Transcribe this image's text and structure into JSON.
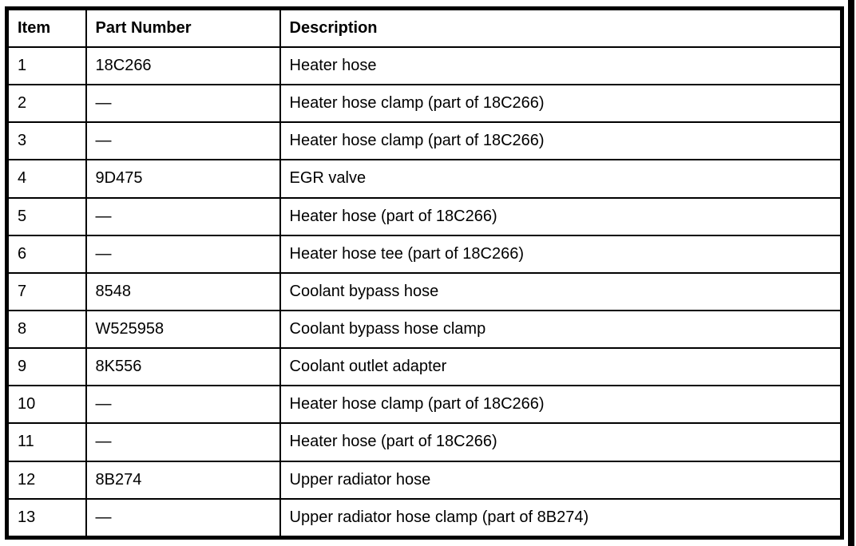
{
  "table": {
    "columns": [
      "Item",
      "Part Number",
      "Description"
    ],
    "rows": [
      {
        "item": "1",
        "part": "18C266",
        "desc": "Heater hose"
      },
      {
        "item": "2",
        "part": "—",
        "desc": "Heater hose clamp (part of 18C266)"
      },
      {
        "item": "3",
        "part": "—",
        "desc": "Heater hose clamp (part of 18C266)"
      },
      {
        "item": "4",
        "part": "9D475",
        "desc": "EGR valve"
      },
      {
        "item": "5",
        "part": "—",
        "desc": "Heater hose (part of 18C266)"
      },
      {
        "item": "6",
        "part": "—",
        "desc": "Heater hose tee (part of 18C266)"
      },
      {
        "item": "7",
        "part": "8548",
        "desc": "Coolant bypass hose"
      },
      {
        "item": "8",
        "part": "W525958",
        "desc": "Coolant bypass hose clamp"
      },
      {
        "item": "9",
        "part": "8K556",
        "desc": "Coolant outlet adapter"
      },
      {
        "item": "10",
        "part": "—",
        "desc": "Heater hose clamp (part of 18C266)"
      },
      {
        "item": "11",
        "part": "—",
        "desc": "Heater hose (part of 18C266)"
      },
      {
        "item": "12",
        "part": "8B274",
        "desc": "Upper radiator hose"
      },
      {
        "item": "13",
        "part": "—",
        "desc": "Upper radiator hose clamp (part of 8B274)"
      }
    ]
  },
  "colors": {
    "border": "#000000",
    "background": "#ffffff",
    "text": "#000000"
  }
}
